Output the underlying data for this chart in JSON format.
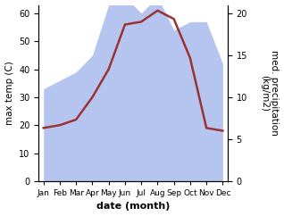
{
  "months": [
    "Jan",
    "Feb",
    "Mar",
    "Apr",
    "May",
    "Jun",
    "Jul",
    "Aug",
    "Sep",
    "Oct",
    "Nov",
    "Dec"
  ],
  "x": [
    0,
    1,
    2,
    3,
    4,
    5,
    6,
    7,
    8,
    9,
    10,
    11
  ],
  "temperature": [
    19,
    20,
    22,
    30,
    40,
    56,
    57,
    61,
    58,
    44,
    19,
    18
  ],
  "precipitation": [
    11,
    12,
    13,
    15,
    21,
    22,
    20,
    22,
    18,
    19,
    19,
    14
  ],
  "temp_color": "#993333",
  "precip_color": "#aabbee",
  "precip_fill_alpha": 0.85,
  "left_ylim": [
    0,
    63
  ],
  "right_ylim": [
    0,
    21
  ],
  "left_yticks": [
    0,
    10,
    20,
    30,
    40,
    50,
    60
  ],
  "right_yticks": [
    0,
    5,
    10,
    15,
    20
  ],
  "ylabel_left": "max temp (C)",
  "ylabel_right": "med. precipitation\n(kg/m2)",
  "xlabel": "date (month)",
  "temp_linewidth": 1.8,
  "bg_color": "#ffffff",
  "scale_factor": 3.0
}
